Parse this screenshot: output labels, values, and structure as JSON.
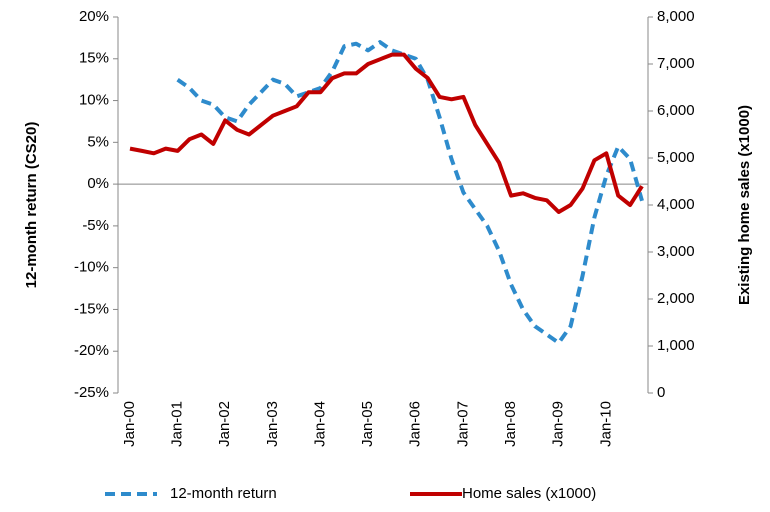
{
  "chart_data": {
    "type": "line",
    "y_label": "12-month return (CS20)",
    "y2_label": "Existing home sales (x1000)",
    "categories": [
      "Jan-00",
      null,
      null,
      null,
      "Jan-01",
      null,
      null,
      null,
      "Jan-02",
      null,
      null,
      null,
      "Jan-03",
      null,
      null,
      null,
      "Jan-04",
      null,
      null,
      null,
      "Jan-05",
      null,
      null,
      null,
      "Jan-06",
      null,
      null,
      null,
      "Jan-07",
      null,
      null,
      null,
      "Jan-08",
      null,
      null,
      null,
      "Jan-09",
      null,
      null,
      null,
      "Jan-10",
      null,
      null,
      null
    ],
    "series": [
      {
        "name": "12-month return",
        "color": "#2e8bcc",
        "dashed": true,
        "values": [
          null,
          null,
          null,
          null,
          12.5,
          11.5,
          10,
          9.5,
          8,
          7.5,
          9.5,
          11,
          12.5,
          12,
          10.5,
          11,
          11.5,
          13.5,
          16.5,
          16.8,
          16,
          17,
          16,
          15.5,
          15,
          12.5,
          8,
          3,
          -1,
          -3,
          -5,
          -8,
          -12,
          -15,
          -17,
          -18,
          -19,
          -17,
          -11,
          -4,
          1,
          4.5,
          3,
          -2
        ]
      },
      {
        "name": "Home sales (x1000)",
        "color": "#c00000",
        "axis": "y2",
        "values": [
          5200,
          5150,
          5100,
          5200,
          5150,
          5400,
          5500,
          5300,
          5800,
          5600,
          5500,
          5700,
          5900,
          6000,
          6100,
          6400,
          6400,
          6700,
          6800,
          6800,
          7000,
          7100,
          7200,
          7200,
          6900,
          6700,
          6300,
          6250,
          6300,
          5700,
          5300,
          4900,
          4200,
          4250,
          4150,
          4100,
          3850,
          4000,
          4350,
          4950,
          5100,
          4200,
          4000,
          4400
        ]
      }
    ],
    "ylim": [
      -25,
      20
    ],
    "yticks": [
      {
        "value": -25,
        "label": "-25%"
      },
      {
        "value": -20,
        "label": "-20%"
      },
      {
        "value": -15,
        "label": "-15%"
      },
      {
        "value": -10,
        "label": "-10%"
      },
      {
        "value": -5,
        "label": "-5%"
      },
      {
        "value": 0,
        "label": "0%"
      },
      {
        "value": 5,
        "label": "5%"
      },
      {
        "value": 10,
        "label": "10%"
      },
      {
        "value": 15,
        "label": "15%"
      },
      {
        "value": 20,
        "label": "20%"
      }
    ],
    "y2lim": [
      0,
      8000
    ],
    "y2ticks": [
      0,
      {
        "value": 1000,
        "label": "1,000"
      },
      {
        "value": 2000,
        "label": "2,000"
      },
      {
        "value": 3000,
        "label": "3,000"
      },
      {
        "value": 4000,
        "label": "4,000"
      },
      {
        "value": 5000,
        "label": "5,000"
      },
      {
        "value": 6000,
        "label": "6,000"
      },
      {
        "value": 7000,
        "label": "7,000"
      },
      {
        "value": 8000,
        "label": "8,000"
      }
    ],
    "legend": "bottom"
  }
}
